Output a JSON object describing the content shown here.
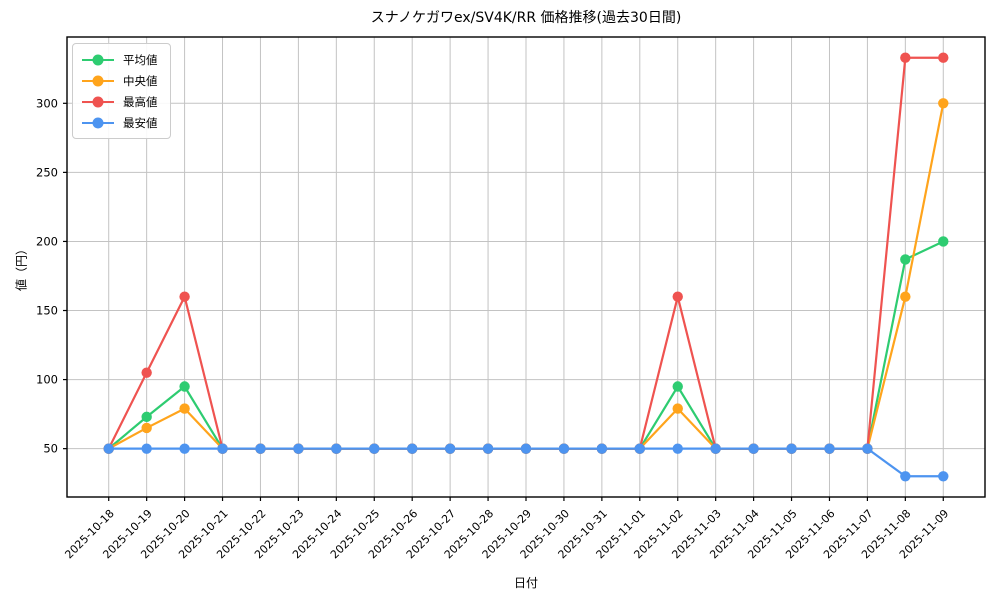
{
  "chart_data": {
    "type": "line",
    "title": "スナノケガワex/SV4K/RR 価格推移(過去30日間)",
    "xlabel": "日付",
    "ylabel": "値（円）",
    "grid": true,
    "grid_color": "#c3c3c3",
    "spine_color": "#000000",
    "background": "#ffffff",
    "legend_position": "upper-left",
    "yticks": [
      50,
      100,
      150,
      200,
      250,
      300
    ],
    "ylim": [
      15,
      348
    ],
    "categories": [
      "2025-10-18",
      "2025-10-19",
      "2025-10-20",
      "2025-10-21",
      "2025-10-22",
      "2025-10-23",
      "2025-10-24",
      "2025-10-25",
      "2025-10-26",
      "2025-10-27",
      "2025-10-28",
      "2025-10-29",
      "2025-10-30",
      "2025-10-31",
      "2025-11-01",
      "2025-11-02",
      "2025-11-03",
      "2025-11-04",
      "2025-11-05",
      "2025-11-06",
      "2025-11-07",
      "2025-11-08",
      "2025-11-09"
    ],
    "series": [
      {
        "name": "平均値",
        "key": "average",
        "color": "#2ecc71",
        "values": [
          50,
          73,
          95,
          50,
          50,
          50,
          50,
          50,
          50,
          50,
          50,
          50,
          50,
          50,
          50,
          95,
          50,
          50,
          50,
          50,
          50,
          187,
          200
        ]
      },
      {
        "name": "中央値",
        "key": "median",
        "color": "#ffa41c",
        "values": [
          50,
          65,
          79,
          50,
          50,
          50,
          50,
          50,
          50,
          50,
          50,
          50,
          50,
          50,
          50,
          79,
          50,
          50,
          50,
          50,
          50,
          160,
          300
        ]
      },
      {
        "name": "最高値",
        "key": "max",
        "color": "#ef5350",
        "values": [
          50,
          105,
          160,
          50,
          50,
          50,
          50,
          50,
          50,
          50,
          50,
          50,
          50,
          50,
          50,
          160,
          50,
          50,
          50,
          50,
          50,
          333,
          333
        ]
      },
      {
        "name": "最安値",
        "key": "min",
        "color": "#4d94f0",
        "values": [
          50,
          50,
          50,
          50,
          50,
          50,
          50,
          50,
          50,
          50,
          50,
          50,
          50,
          50,
          50,
          50,
          50,
          50,
          50,
          50,
          50,
          30,
          30
        ]
      }
    ]
  }
}
